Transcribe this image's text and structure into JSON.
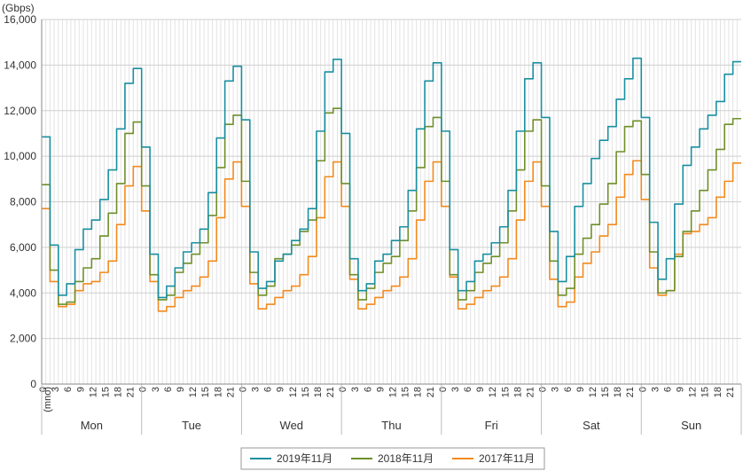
{
  "chart_data": {
    "type": "line",
    "ylabel": "(Gbps)",
    "ylim": [
      0,
      16000
    ],
    "yticks": [
      0,
      2000,
      4000,
      6000,
      8000,
      10000,
      12000,
      14000,
      16000
    ],
    "ytick_labels": [
      "0",
      "2,000",
      "4,000",
      "6,000",
      "8,000",
      "10,000",
      "12,000",
      "14,000",
      "16,000"
    ],
    "x_unit_label": "(mno)",
    "hour_ticks": [
      "0",
      "3",
      "6",
      "9",
      "12",
      "15",
      "18",
      "21"
    ],
    "days": [
      "Mon",
      "Tue",
      "Wed",
      "Thu",
      "Fri",
      "Sat",
      "Sun"
    ],
    "grid": true,
    "legend_position": "bottom",
    "series": [
      {
        "name": "2019年11月",
        "color": "#1a8fa0",
        "values": [
          10850,
          6100,
          3900,
          4400,
          5900,
          6800,
          7200,
          8100,
          9400,
          11200,
          13200,
          13850,
          10400,
          5700,
          3800,
          4300,
          5100,
          5800,
          6200,
          6800,
          8400,
          10800,
          13300,
          13950,
          11600,
          5800,
          4200,
          4500,
          5400,
          5700,
          6300,
          6800,
          7700,
          11100,
          13700,
          14250,
          11000,
          5500,
          4100,
          4400,
          5400,
          5700,
          6300,
          6900,
          8500,
          11200,
          13300,
          14100,
          11100,
          5900,
          4100,
          4500,
          5400,
          5700,
          6200,
          6900,
          8500,
          11100,
          13400,
          14100,
          11700,
          6700,
          4500,
          5600,
          7800,
          8800,
          9900,
          10700,
          11300,
          12500,
          13400,
          14300,
          11700,
          7100,
          4600,
          5500,
          7900,
          9600,
          10400,
          11200,
          11800,
          12400,
          13600,
          14150
        ]
      },
      {
        "name": "2018年11月",
        "color": "#6f8f2a",
        "values": [
          8750,
          5000,
          3500,
          3600,
          4500,
          5100,
          5500,
          6500,
          7500,
          8800,
          11000,
          11500,
          8700,
          4800,
          3700,
          3900,
          4900,
          5300,
          5700,
          6200,
          7400,
          9500,
          11400,
          11800,
          8900,
          4900,
          3900,
          4300,
          5500,
          5700,
          6100,
          6700,
          7200,
          9800,
          11900,
          12100,
          8800,
          4800,
          3700,
          4200,
          4900,
          5300,
          5600,
          6300,
          7600,
          9500,
          11300,
          11700,
          8900,
          4800,
          3700,
          4100,
          4900,
          5300,
          5600,
          6200,
          7600,
          9400,
          11100,
          11600,
          8700,
          5400,
          3900,
          4200,
          5700,
          6400,
          7000,
          7900,
          8800,
          10200,
          11300,
          11550,
          9200,
          5800,
          4000,
          4100,
          5600,
          6700,
          7600,
          8500,
          9400,
          10300,
          11400,
          11650
        ]
      },
      {
        "name": "2017年11月",
        "color": "#f28a1e",
        "values": [
          7700,
          4500,
          3400,
          3500,
          4100,
          4400,
          4500,
          4900,
          5400,
          7000,
          8700,
          9550,
          7600,
          4500,
          3200,
          3400,
          3800,
          4100,
          4300,
          4700,
          5400,
          7300,
          9000,
          9750,
          7800,
          4400,
          3300,
          3500,
          3800,
          4100,
          4300,
          4800,
          5600,
          7300,
          9100,
          9750,
          7800,
          4600,
          3300,
          3500,
          3800,
          4100,
          4300,
          4700,
          5500,
          7200,
          8900,
          9750,
          7800,
          4700,
          3300,
          3500,
          3800,
          4100,
          4300,
          4700,
          5500,
          7200,
          8900,
          9750,
          7800,
          4600,
          3400,
          3600,
          4700,
          5300,
          5800,
          6500,
          7000,
          8200,
          9200,
          9800,
          8100,
          5100,
          3900,
          4100,
          5700,
          6600,
          6700,
          7000,
          7300,
          8200,
          8900,
          9700
        ]
      }
    ]
  }
}
